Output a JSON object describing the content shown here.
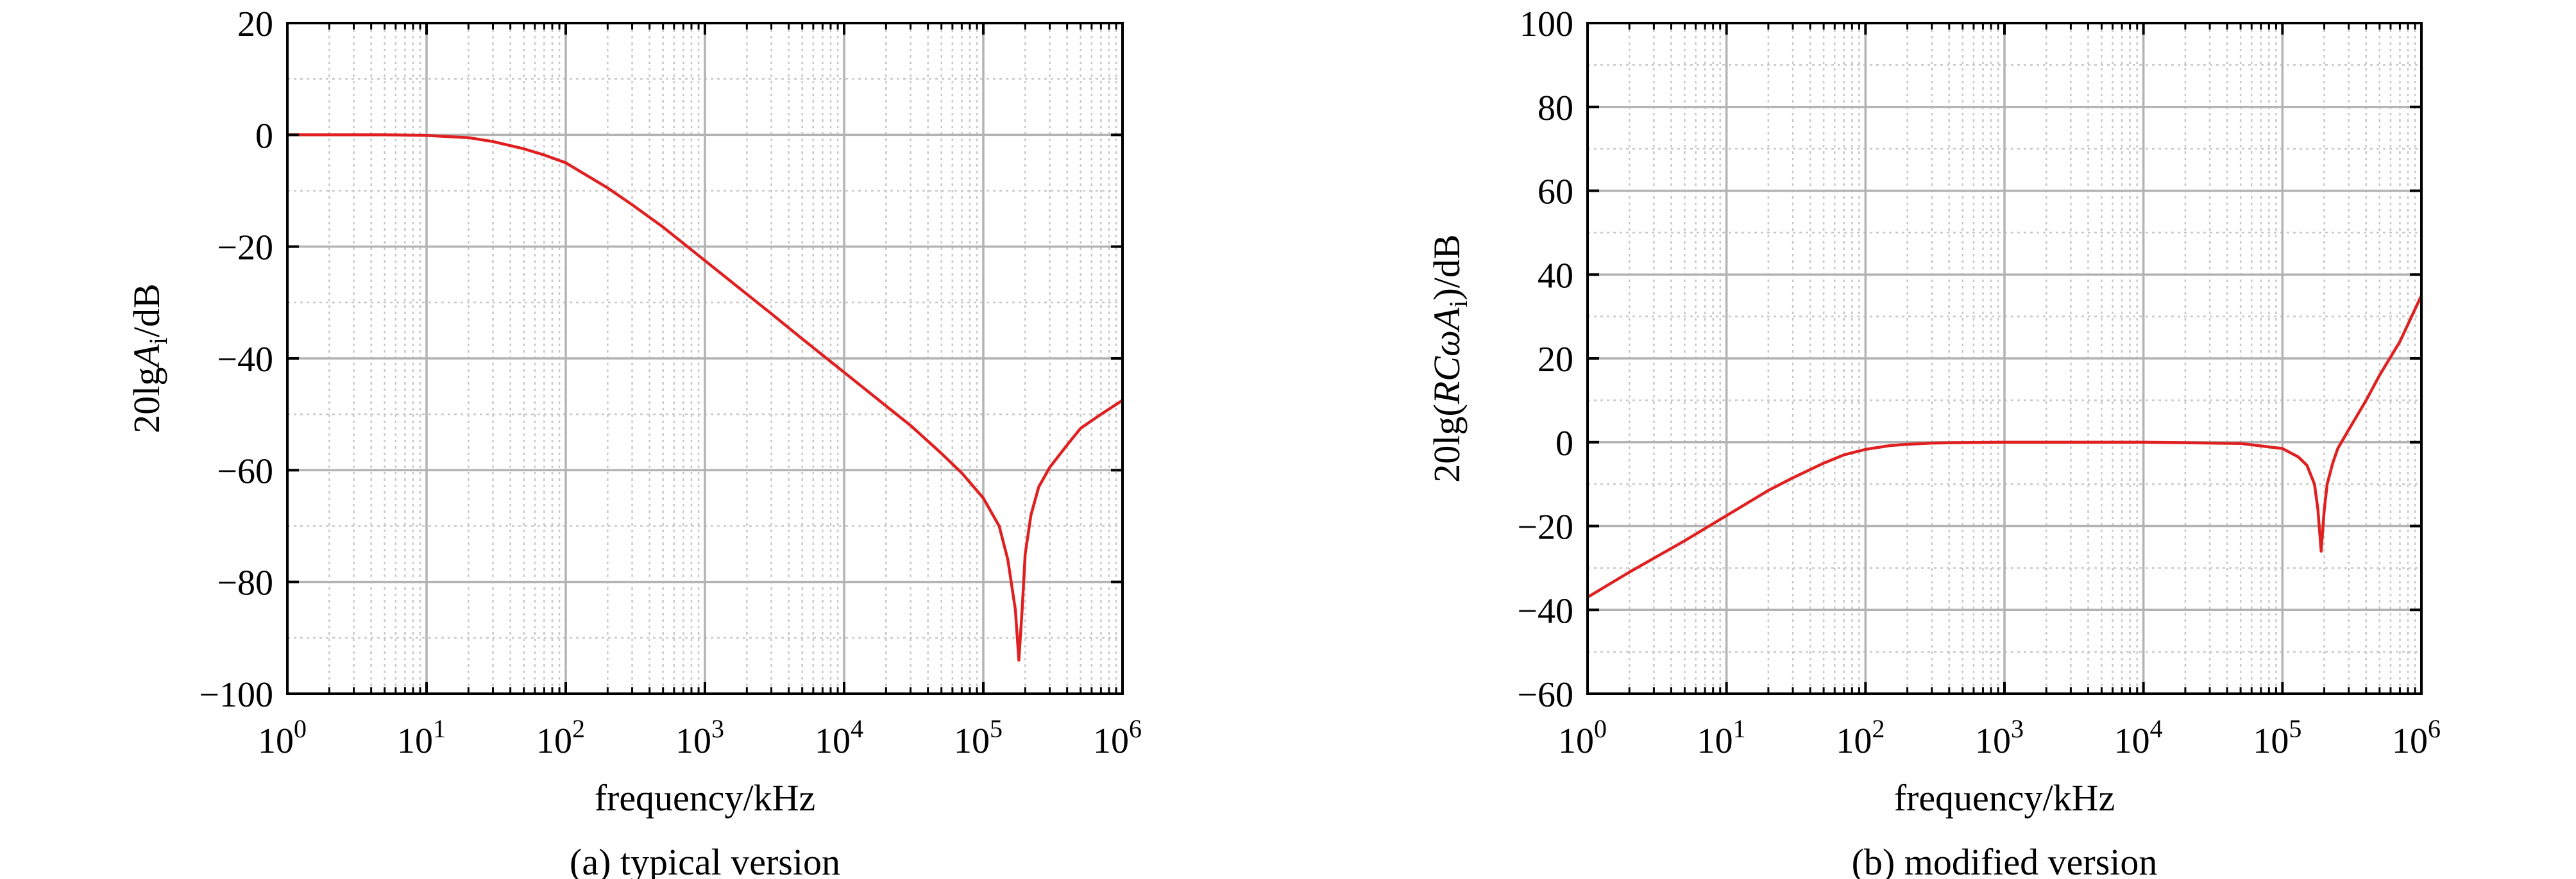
{
  "colors": {
    "curve": "#e02020",
    "axis": "#000000",
    "major_grid": "#b3b3b3",
    "minor_grid": "#c8c8c8"
  },
  "chart_data": [
    {
      "id": "a",
      "type": "line",
      "title": "",
      "caption": "(a) typical version",
      "xlabel": "frequency/kHz",
      "ylabel": {
        "prefix": "20lg",
        "italic": "A",
        "sub": "i",
        "suffix": "/dB"
      },
      "xscale": "log",
      "xlim": [
        1,
        1000000
      ],
      "ylim": [
        -100,
        20
      ],
      "xticks": {
        "base": "10",
        "exponents": [
          "0",
          "1",
          "2",
          "3",
          "4",
          "5",
          "6"
        ]
      },
      "yticks": [
        "20",
        "0",
        "−20",
        "−40",
        "−60",
        "−80",
        "−100"
      ],
      "ytick_values": [
        20,
        0,
        -20,
        -40,
        -60,
        -80,
        -100
      ],
      "ymajor_step": 20,
      "grid": true,
      "legend": "none",
      "series": [
        {
          "x": [
            1,
            5,
            10,
            20,
            30,
            50,
            70,
            100,
            200,
            300,
            500,
            1000,
            2000,
            3000,
            5000,
            10000,
            20000,
            30000,
            50000,
            70000,
            100000,
            130000,
            150000,
            170000,
            180000,
            190000,
            200000,
            220000,
            250000,
            300000,
            400000,
            500000,
            700000,
            1000000
          ],
          "y": [
            0,
            0,
            -0.1,
            -0.5,
            -1.2,
            -2.5,
            -3.6,
            -5,
            -9.5,
            -12.5,
            -16.5,
            -22.5,
            -28.5,
            -32,
            -36.5,
            -42.5,
            -48.5,
            -52,
            -57,
            -60.5,
            -65,
            -70,
            -76,
            -85,
            -94,
            -85,
            -75,
            -68,
            -63,
            -59.5,
            -55.5,
            -52.5,
            -50,
            -47.5
          ]
        }
      ]
    },
    {
      "id": "b",
      "type": "line",
      "title": "",
      "caption": "(b) modified version",
      "xlabel": "frequency/kHz",
      "ylabel": {
        "prefix": "20lg(",
        "italic": "RCωA",
        "sub": "i",
        "suffix": ")/dB"
      },
      "xscale": "log",
      "xlim": [
        1,
        1000000
      ],
      "ylim": [
        -60,
        100
      ],
      "xticks": {
        "base": "10",
        "exponents": [
          "0",
          "1",
          "2",
          "3",
          "4",
          "5",
          "6"
        ]
      },
      "yticks": [
        "100",
        "80",
        "60",
        "40",
        "20",
        "0",
        "−20",
        "−40",
        "−60"
      ],
      "ytick_values": [
        100,
        80,
        60,
        40,
        20,
        0,
        -20,
        -40,
        -60
      ],
      "ymajor_step": 20,
      "grid": true,
      "legend": "none",
      "series": [
        {
          "x": [
            1,
            2,
            5,
            10,
            20,
            30,
            50,
            70,
            100,
            150,
            200,
            300,
            500,
            1000,
            10000,
            50000,
            100000,
            130000,
            150000,
            170000,
            180000,
            190000,
            200000,
            210000,
            230000,
            250000,
            300000,
            400000,
            500000,
            700000,
            1000000
          ],
          "y": [
            -37,
            -31,
            -23.5,
            -17.5,
            -11.5,
            -8.5,
            -5,
            -3,
            -1.7,
            -0.8,
            -0.5,
            -0.2,
            -0.1,
            0,
            0,
            -0.3,
            -1.5,
            -3.5,
            -5.5,
            -10,
            -16,
            -26,
            -16,
            -10,
            -5,
            -1.5,
            3,
            10,
            16,
            24,
            35
          ]
        }
      ]
    }
  ]
}
